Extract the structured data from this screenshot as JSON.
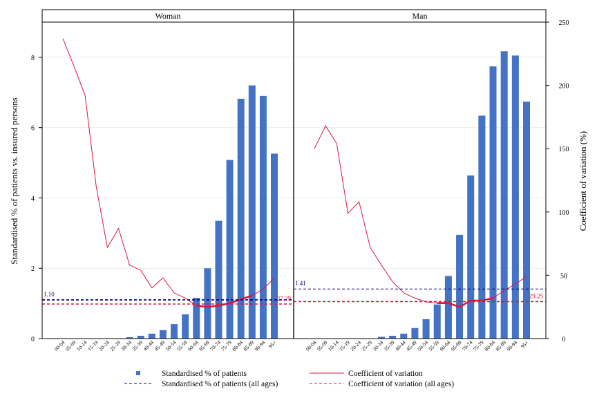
{
  "chart_data": {
    "type": "bar",
    "categories": [
      "00-04",
      "05-09",
      "10-14",
      "15-19",
      "20-24",
      "25-29",
      "30-34",
      "35-39",
      "40-44",
      "45-49",
      "50-54",
      "55-59",
      "60-64",
      "65-69",
      "70-74",
      "75-79",
      "80-84",
      "85-89",
      "90-94",
      "95+"
    ],
    "y_left_label": "Standardised % of patients vs. insured persons",
    "y_right_label": "Coefficient of variation (%)",
    "y_left_range": [
      0,
      9
    ],
    "y_left_ticks": [
      0,
      2,
      4,
      6,
      8
    ],
    "y_right_range": [
      0,
      250
    ],
    "y_right_ticks": [
      0,
      50,
      100,
      150,
      200,
      250
    ],
    "colors": {
      "bar": "#4472C4",
      "cv": "#DC143C",
      "avg_pct": "#000080",
      "avg_cv": "#DC143C"
    },
    "panels": [
      {
        "name": "Woman",
        "bars": [
          0.0,
          0.0,
          0.0,
          0.0,
          0.0,
          0.01,
          0.04,
          0.08,
          0.14,
          0.24,
          0.41,
          0.69,
          1.16,
          2.0,
          3.35,
          5.08,
          6.82,
          7.2,
          6.9,
          5.26
        ],
        "cv": [
          237,
          215,
          192,
          120,
          72,
          87,
          58,
          54,
          40,
          48,
          36,
          32,
          26,
          25,
          26,
          28,
          31,
          34,
          39,
          48
        ],
        "cv_thick_from_index": 12,
        "avg_pct": 1.1,
        "avg_pct_label": "1.10",
        "avg_cv": 27.29,
        "avg_cv_label": "27.29"
      },
      {
        "name": "Man",
        "bars": [
          0.0,
          0.0,
          0.0,
          0.0,
          0.0,
          0.0,
          0.05,
          0.08,
          0.14,
          0.3,
          0.55,
          0.97,
          1.78,
          2.95,
          4.64,
          6.34,
          7.74,
          8.17,
          8.05,
          6.74
        ],
        "cv": [
          150,
          168,
          154,
          99,
          108,
          72,
          58,
          45,
          36,
          32,
          29,
          28,
          28,
          25,
          30,
          30,
          32,
          38,
          43,
          49
        ],
        "cv_thick_from_index": 11,
        "avg_pct": 1.41,
        "avg_pct_label": "1.41",
        "avg_cv": 29.25,
        "avg_cv_label": "29.25"
      }
    ],
    "legend": [
      {
        "kind": "bar",
        "label": "Standardised % of patients"
      },
      {
        "kind": "line",
        "label": "Coefficient of variation"
      },
      {
        "kind": "dash-blue",
        "label": "Standardised % of patients (all ages)"
      },
      {
        "kind": "dash-red",
        "label": "Coefficient of variation (all ages)"
      }
    ],
    "legend_position": "bottom"
  }
}
